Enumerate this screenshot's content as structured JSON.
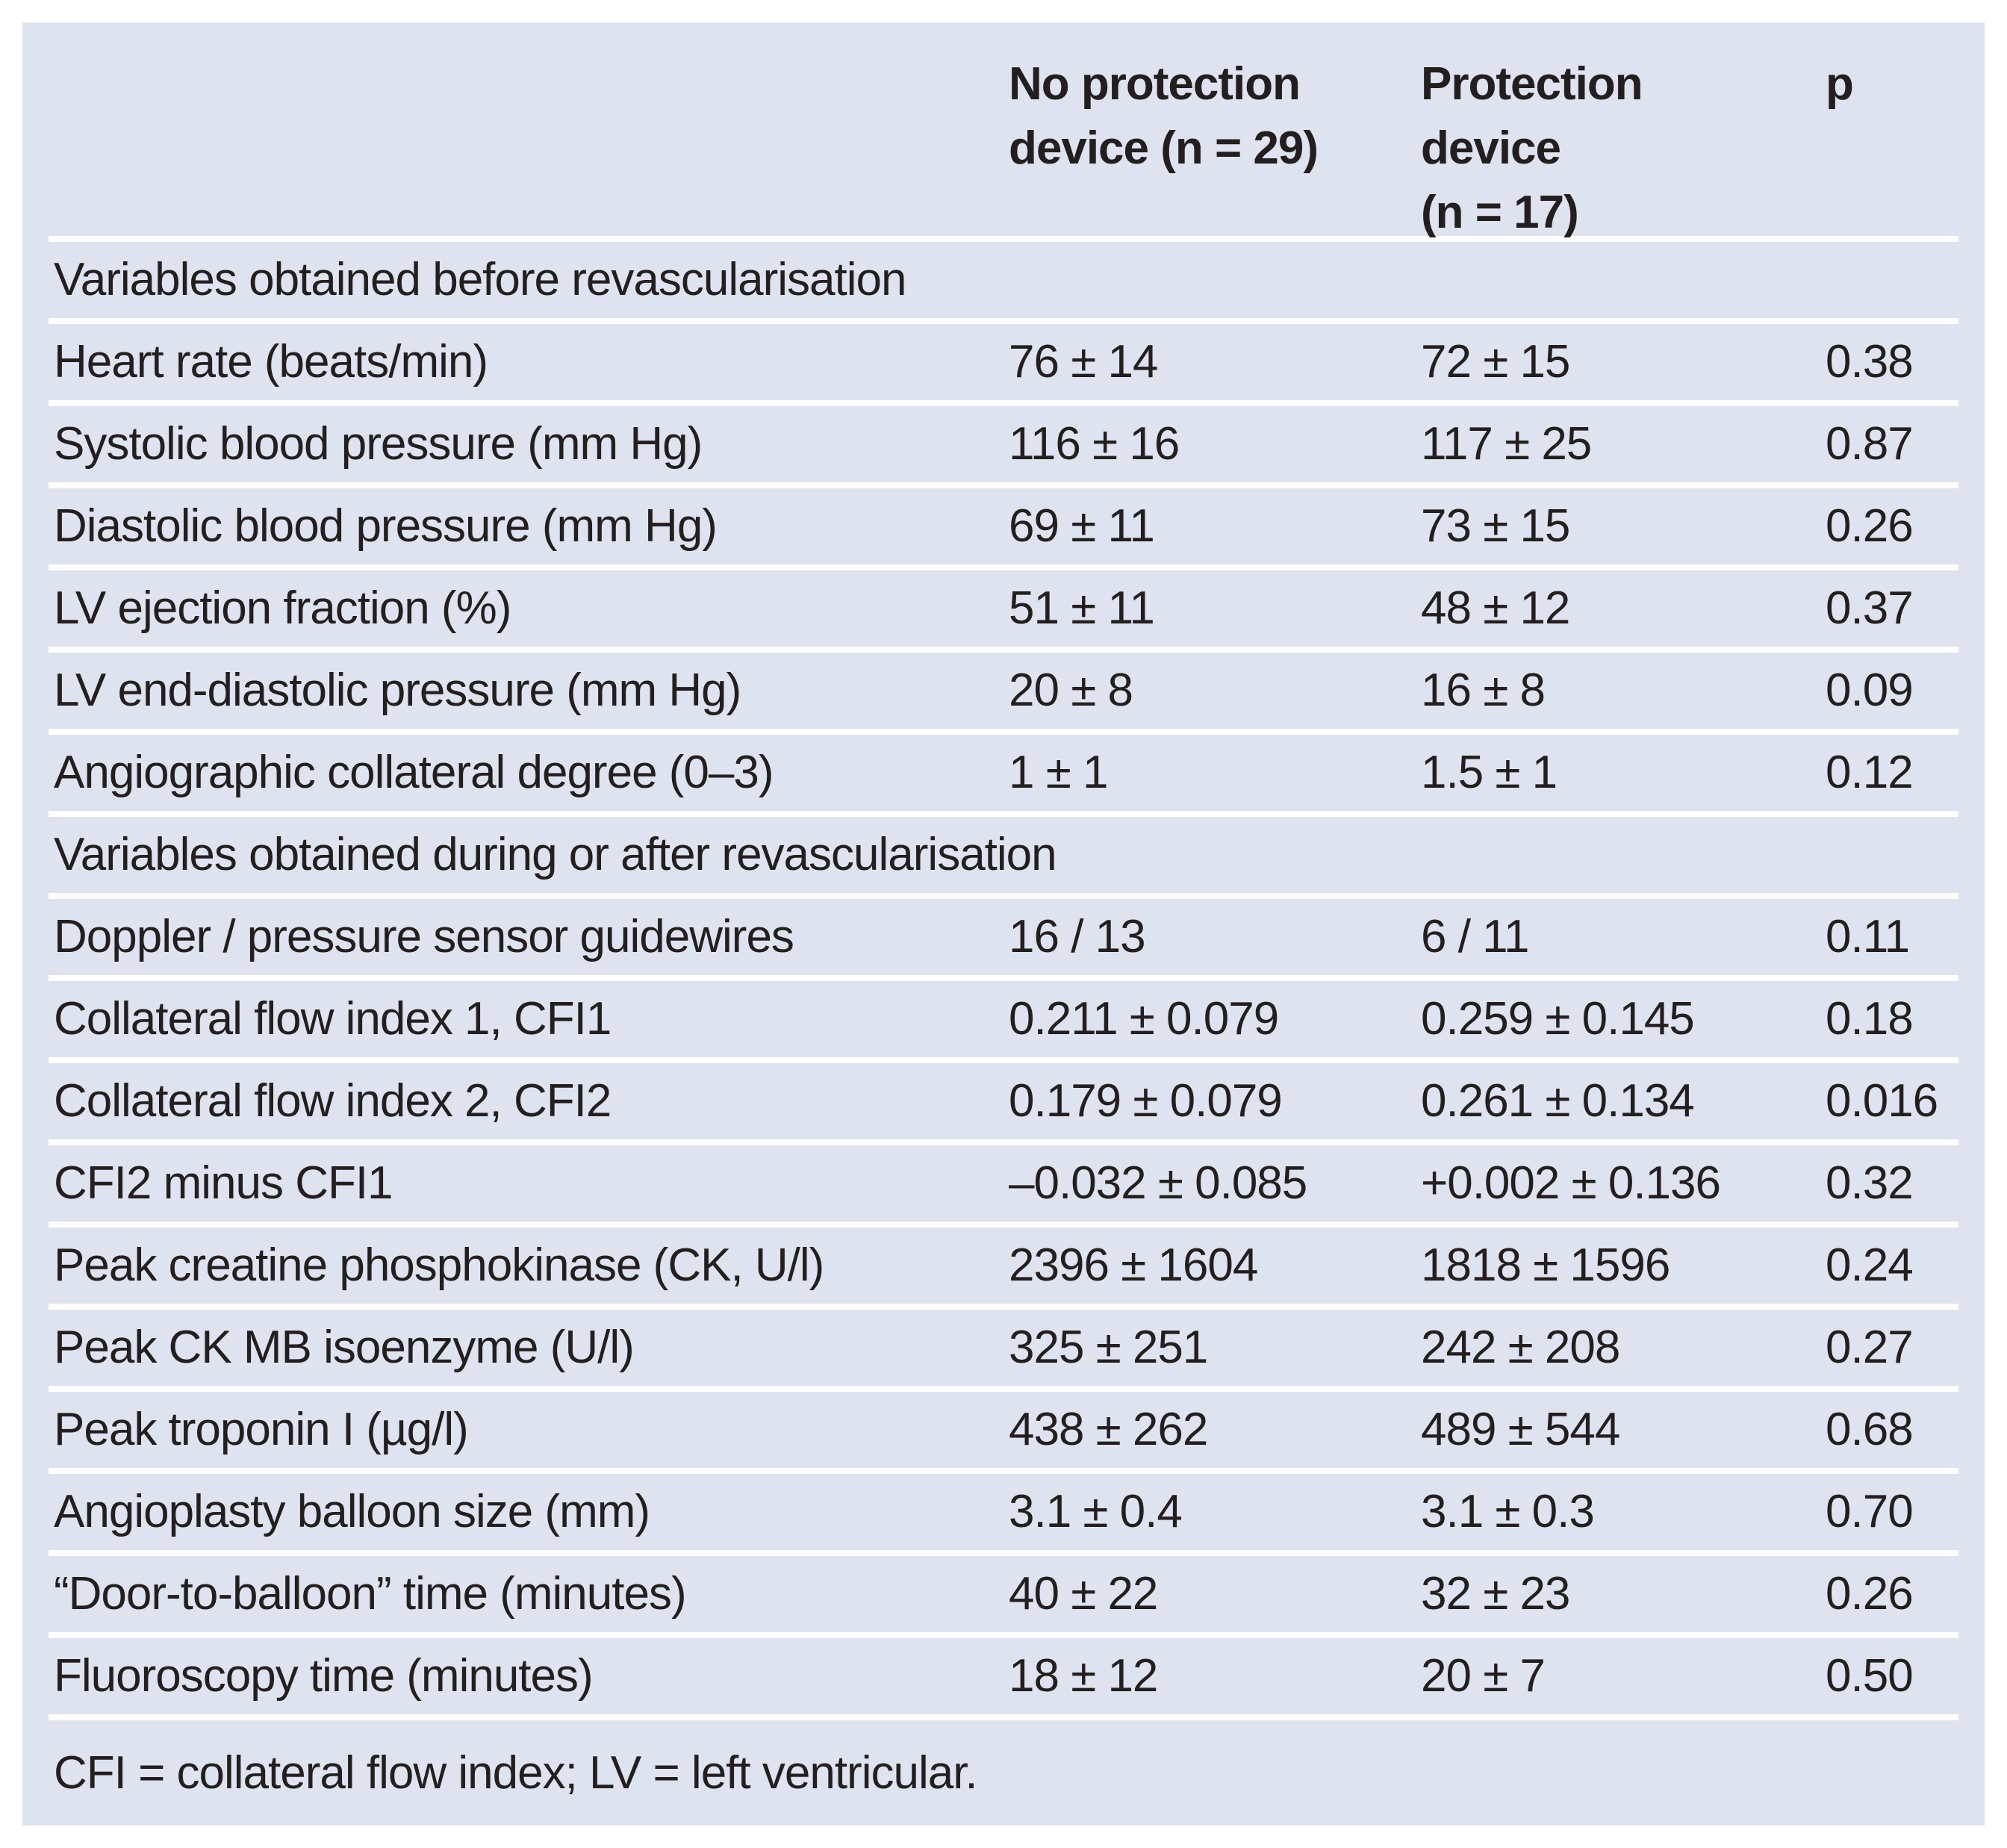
{
  "colors": {
    "page_background": "#ffffff",
    "panel_background": "#dfe2ef",
    "row_divider": "#ffffff",
    "text": "#231f20"
  },
  "header": {
    "no_protection": [
      "No protection",
      "device (n = 29)"
    ],
    "protection": [
      "Protection",
      "device",
      "(n = 17)"
    ],
    "p": "p"
  },
  "rows": [
    {
      "type": "section",
      "label": "Variables obtained before revascularisation"
    },
    {
      "type": "data",
      "label": "Heart rate (beats/min)",
      "no_protection": "76 ± 14",
      "protection": "72 ± 15",
      "p": "0.38"
    },
    {
      "type": "data",
      "label": "Systolic blood pressure (mm Hg)",
      "no_protection": "116 ± 16",
      "protection": "117 ± 25",
      "p": "0.87"
    },
    {
      "type": "data",
      "label": "Diastolic blood pressure (mm Hg)",
      "no_protection": "69 ± 11",
      "protection": "73 ± 15",
      "p": "0.26"
    },
    {
      "type": "data",
      "label": "LV ejection fraction (%)",
      "no_protection": "51 ± 11",
      "protection": "48 ± 12",
      "p": "0.37"
    },
    {
      "type": "data",
      "label": "LV end-diastolic pressure (mm Hg)",
      "no_protection": "20 ± 8",
      "protection": "16 ± 8",
      "p": "0.09"
    },
    {
      "type": "data",
      "label": "Angiographic collateral degree (0–3)",
      "no_protection": "1 ± 1",
      "protection": "1.5 ± 1",
      "p": "0.12"
    },
    {
      "type": "section",
      "label": "Variables obtained during or after revascularisation"
    },
    {
      "type": "data",
      "label": "Doppler / pressure sensor guidewires",
      "no_protection": "16 / 13",
      "protection": "6 / 11",
      "p": "0.11"
    },
    {
      "type": "data",
      "label": "Collateral flow index 1, CFI1",
      "no_protection": "0.211 ± 0.079",
      "protection": "0.259 ± 0.145",
      "p": "0.18"
    },
    {
      "type": "data",
      "label": "Collateral flow index 2, CFI2",
      "no_protection": "0.179 ± 0.079",
      "protection": "0.261 ± 0.134",
      "p": "0.016"
    },
    {
      "type": "data",
      "label": "CFI2 minus CFI1",
      "no_protection": "–0.032 ± 0.085",
      "protection": "+0.002 ± 0.136",
      "p": "0.32"
    },
    {
      "type": "data",
      "label": "Peak creatine phosphokinase (CK, U/l)",
      "no_protection": "2396 ± 1604",
      "protection": "1818 ± 1596",
      "p": "0.24"
    },
    {
      "type": "data",
      "label": "Peak CK MB isoenzyme (U/l)",
      "no_protection": "325 ± 251",
      "protection": "242 ± 208",
      "p": "0.27"
    },
    {
      "type": "data",
      "label": "Peak troponin I (µg/l)",
      "no_protection": "438 ± 262",
      "protection": "489 ± 544",
      "p": "0.68"
    },
    {
      "type": "data",
      "label": "Angioplasty balloon size (mm)",
      "no_protection": "3.1 ± 0.4",
      "protection": "3.1 ± 0.3",
      "p": "0.70"
    },
    {
      "type": "data",
      "label": "“Door-to-balloon” time (minutes)",
      "no_protection": "40 ± 22",
      "protection": "32 ± 23",
      "p": "0.26"
    },
    {
      "type": "data",
      "label": "Fluoroscopy time (minutes)",
      "no_protection": "18 ± 12",
      "protection": "20 ± 7",
      "p": "0.50"
    }
  ],
  "footnote": "CFI = collateral flow index; LV = left ventricular."
}
